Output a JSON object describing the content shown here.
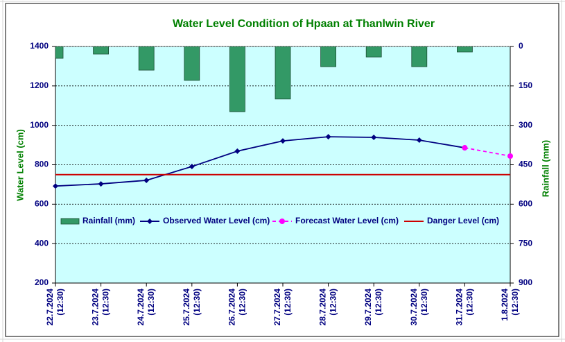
{
  "chart_data": {
    "type": "combo",
    "title": "Water Level Condition of Hpaan at Thanlwin River",
    "ylabel": "Water Level (cm)",
    "y2label": "Rainfall (mm)",
    "categories": [
      "22.7.2024 (12:30)",
      "23.7.2024 (12:30)",
      "24.7.2024 (12:30)",
      "25.7.2024 (12:30)",
      "26.7.2024 (12:30)",
      "27.7.2024 (12:30)",
      "28.7.2024 (12:30)",
      "29.7.2024 (12:30)",
      "30.7.2024 (12:30)",
      "31.7.2024 (12:30)",
      "1.8.2024 (12:30)"
    ],
    "series": [
      {
        "name": "Rainfall (mm)",
        "kind": "bar",
        "axis": "y2",
        "color": "#339966",
        "values": [
          45,
          29,
          90,
          129,
          248,
          200,
          77,
          40,
          77,
          21,
          null
        ]
      },
      {
        "name": "Observed Water Level (cm)",
        "kind": "line",
        "dash": false,
        "marker": "diamond",
        "color": "#000080",
        "values": [
          692,
          703,
          721,
          791,
          869,
          921,
          942,
          939,
          925,
          886,
          null
        ]
      },
      {
        "name": "Forecast Water Level (cm)",
        "kind": "line",
        "dash": true,
        "marker": "circle",
        "color": "#ff00ff",
        "values": [
          null,
          null,
          null,
          null,
          null,
          null,
          null,
          null,
          null,
          886,
          844
        ]
      },
      {
        "name": "Danger Level (cm)",
        "kind": "line",
        "dash": false,
        "marker": null,
        "color": "#cc0000",
        "values": [
          750,
          750,
          750,
          750,
          750,
          750,
          750,
          750,
          750,
          750,
          750
        ]
      }
    ],
    "ylim": [
      200,
      1400
    ],
    "yticks": [
      200,
      400,
      600,
      800,
      1000,
      1200,
      1400
    ],
    "y2lim": [
      900,
      0
    ],
    "y2ticks": [
      0,
      150,
      300,
      450,
      600,
      750,
      900
    ],
    "grid": true,
    "legend": "inside-lower"
  }
}
